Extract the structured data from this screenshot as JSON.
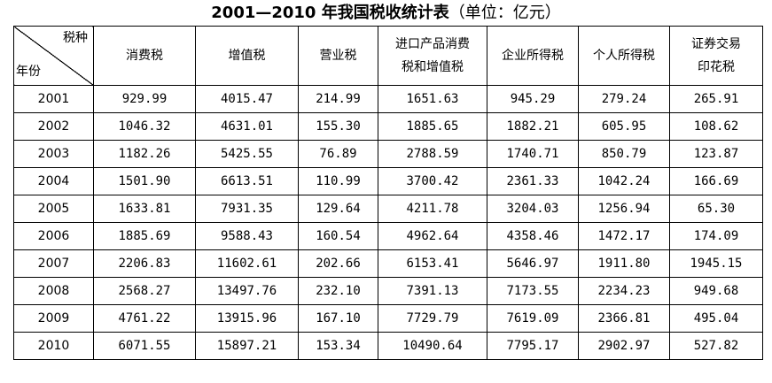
{
  "title": {
    "main": "2001—2010 年我国税收统计表",
    "unit": "（单位：亿元）"
  },
  "table": {
    "corner": {
      "top": "税种",
      "bottom": "年份"
    },
    "headers": [
      {
        "line1": "消费税",
        "line2": ""
      },
      {
        "line1": "增值税",
        "line2": ""
      },
      {
        "line1": "营业税",
        "line2": ""
      },
      {
        "line1": "进口产品消费",
        "line2": "税和增值税"
      },
      {
        "line1": "企业所得税",
        "line2": ""
      },
      {
        "line1": "个人所得税",
        "line2": ""
      },
      {
        "line1": "证券交易",
        "line2": "印花税"
      }
    ],
    "rows": [
      [
        "2001",
        "929.99",
        "4015.47",
        "214.99",
        "1651.63",
        "945.29",
        "279.24",
        "265.91"
      ],
      [
        "2002",
        "1046.32",
        "4631.01",
        "155.30",
        "1885.65",
        "1882.21",
        "605.95",
        "108.62"
      ],
      [
        "2003",
        "1182.26",
        "5425.55",
        "76.89",
        "2788.59",
        "1740.71",
        "850.79",
        "123.87"
      ],
      [
        "2004",
        "1501.90",
        "6613.51",
        "110.99",
        "3700.42",
        "2361.33",
        "1042.24",
        "166.69"
      ],
      [
        "2005",
        "1633.81",
        "7931.35",
        "129.64",
        "4211.78",
        "3204.03",
        "1256.94",
        "65.30"
      ],
      [
        "2006",
        "1885.69",
        "9588.43",
        "160.54",
        "4962.64",
        "4358.46",
        "1472.17",
        "174.09"
      ],
      [
        "2007",
        "2206.83",
        "11602.61",
        "202.66",
        "6153.41",
        "5646.97",
        "1911.80",
        "1945.15"
      ],
      [
        "2008",
        "2568.27",
        "13497.76",
        "232.10",
        "7391.13",
        "7173.55",
        "2234.23",
        "949.68"
      ],
      [
        "2009",
        "4761.22",
        "13915.96",
        "167.10",
        "7729.79",
        "7619.09",
        "2366.81",
        "495.04"
      ],
      [
        "2010",
        "6071.55",
        "15897.21",
        "153.34",
        "10490.64",
        "7795.17",
        "2902.97",
        "527.82"
      ]
    ]
  }
}
